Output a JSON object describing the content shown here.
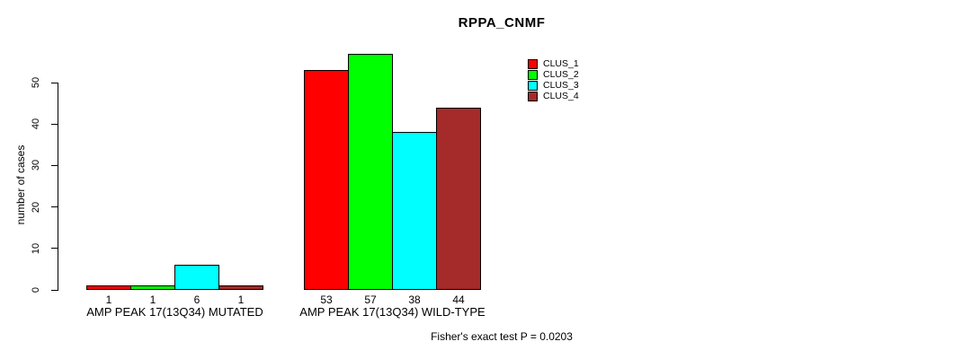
{
  "chart_data": {
    "type": "bar",
    "title": "RPPA_CNMF",
    "ylabel": "number of cases",
    "xlabel": "",
    "ylim": [
      0,
      57
    ],
    "yticks": [
      0,
      10,
      20,
      30,
      40,
      50
    ],
    "grid": false,
    "legend_position": "topright",
    "categories": [
      "AMP PEAK 17(13Q34) MUTATED",
      "AMP PEAK 17(13Q34) WILD-TYPE"
    ],
    "series": [
      {
        "name": "CLUS_1",
        "color": "#ff0000",
        "values": [
          1,
          53
        ]
      },
      {
        "name": "CLUS_2",
        "color": "#00ff00",
        "values": [
          1,
          57
        ]
      },
      {
        "name": "CLUS_3",
        "color": "#00ffff",
        "values": [
          6,
          38
        ]
      },
      {
        "name": "CLUS_4",
        "color": "#a52a2a",
        "values": [
          1,
          44
        ]
      }
    ],
    "bar_value_labels_shown": true,
    "annotation": "Fisher's exact test P = 0.0203"
  }
}
